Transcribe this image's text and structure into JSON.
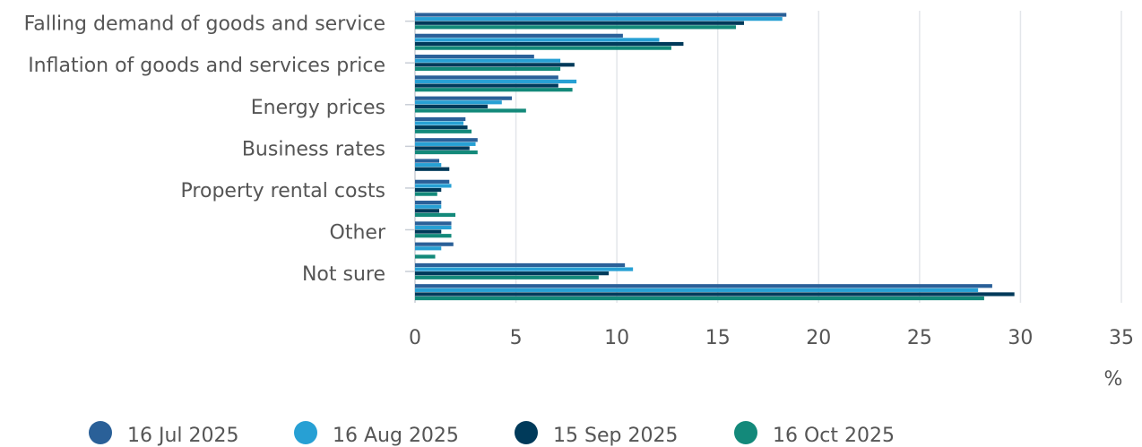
{
  "chart_data": {
    "type": "hbar",
    "categories": [
      "Falling demand of goods and service",
      null,
      "Inflation of goods and services price",
      null,
      "Energy prices",
      null,
      "Business rates",
      null,
      "Property rental costs",
      null,
      "Other",
      null,
      "Not sure",
      null
    ],
    "series": [
      {
        "name": "16 Jul 2025",
        "color": "#2a6098",
        "values": [
          18.4,
          10.3,
          5.9,
          7.1,
          4.8,
          2.5,
          3.1,
          1.2,
          1.7,
          1.3,
          1.8,
          1.9,
          10.4,
          28.6
        ]
      },
      {
        "name": "16 Aug 2025",
        "color": "#27a0d4",
        "values": [
          18.2,
          12.1,
          7.2,
          8.0,
          4.3,
          2.4,
          3.0,
          1.3,
          1.8,
          1.3,
          1.8,
          1.3,
          10.8,
          27.9
        ]
      },
      {
        "name": "15 Sep 2025",
        "color": "#003a5a",
        "values": [
          16.3,
          13.3,
          7.9,
          7.1,
          3.6,
          2.6,
          2.7,
          1.7,
          1.3,
          1.2,
          1.3,
          0,
          9.6,
          29.7
        ]
      },
      {
        "name": "16 Oct 2025",
        "color": "#13897a",
        "values": [
          15.9,
          12.7,
          7.2,
          7.8,
          5.5,
          2.8,
          3.1,
          0,
          1.1,
          2.0,
          1.8,
          1.0,
          9.1,
          28.2
        ]
      }
    ],
    "xlabel": "%",
    "xlim": [
      0,
      35
    ],
    "xticks": [
      0,
      5,
      10,
      15,
      20,
      25,
      30,
      35
    ],
    "grid": true,
    "legend": "bottom"
  }
}
